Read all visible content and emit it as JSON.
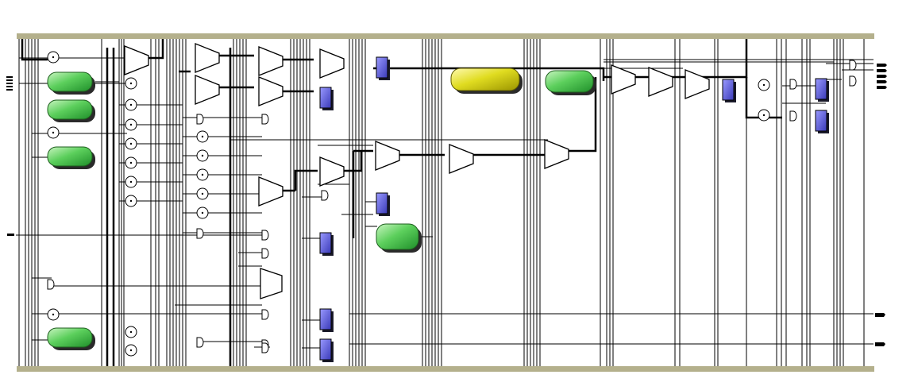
{
  "diagram": {
    "type": "rtl-schematic",
    "colors": {
      "background": "#ffffff",
      "rail": "#b4b08c",
      "wire": "#000000",
      "register": "#5b5bd0",
      "instance_green": "#5ccf5c",
      "instance_yellow": "#e0dc20"
    },
    "element_kinds": [
      "power-rail",
      "wire",
      "bus",
      "green-instance-block",
      "yellow-instance-block",
      "mux",
      "register",
      "logic-gate",
      "adder-circle",
      "input-port",
      "output-port"
    ]
  }
}
